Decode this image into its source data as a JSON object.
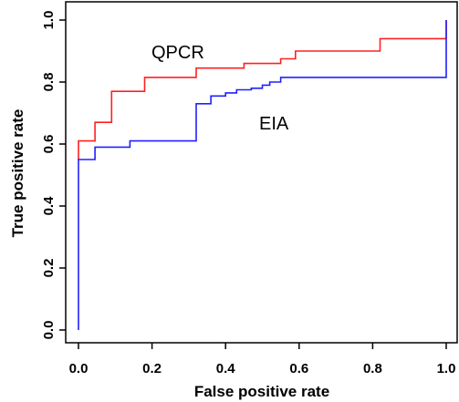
{
  "chart_data": {
    "type": "line",
    "xlabel": "False positive rate",
    "ylabel": "True positive rate",
    "xlim": [
      0,
      1
    ],
    "ylim": [
      0,
      1
    ],
    "x_ticks": [
      0.0,
      0.2,
      0.4,
      0.6,
      0.8,
      1.0
    ],
    "x_tick_labels": [
      "0.0",
      "0.2",
      "0.4",
      "0.6",
      "0.8",
      "1.0"
    ],
    "y_ticks": [
      0.0,
      0.2,
      0.4,
      0.6,
      0.8,
      1.0
    ],
    "y_tick_labels": [
      "0.0",
      "0.2",
      "0.4",
      "0.6",
      "0.8",
      "1.0"
    ],
    "grid": false,
    "series": [
      {
        "name": "QPCR",
        "color": "#ff2020",
        "points": [
          [
            0.0,
            0.55
          ],
          [
            0.0,
            0.61
          ],
          [
            0.045,
            0.61
          ],
          [
            0.045,
            0.67
          ],
          [
            0.09,
            0.67
          ],
          [
            0.09,
            0.77
          ],
          [
            0.18,
            0.77
          ],
          [
            0.18,
            0.815
          ],
          [
            0.32,
            0.815
          ],
          [
            0.32,
            0.845
          ],
          [
            0.45,
            0.845
          ],
          [
            0.45,
            0.86
          ],
          [
            0.55,
            0.86
          ],
          [
            0.55,
            0.875
          ],
          [
            0.59,
            0.875
          ],
          [
            0.59,
            0.9
          ],
          [
            0.82,
            0.9
          ],
          [
            0.82,
            0.94
          ],
          [
            1.0,
            0.94
          ],
          [
            1.0,
            1.0
          ]
        ]
      },
      {
        "name": "EIA",
        "color": "#2020ff",
        "points": [
          [
            0.0,
            0.0
          ],
          [
            0.0,
            0.55
          ],
          [
            0.045,
            0.55
          ],
          [
            0.045,
            0.59
          ],
          [
            0.14,
            0.59
          ],
          [
            0.14,
            0.61
          ],
          [
            0.32,
            0.61
          ],
          [
            0.32,
            0.73
          ],
          [
            0.36,
            0.73
          ],
          [
            0.36,
            0.755
          ],
          [
            0.4,
            0.755
          ],
          [
            0.4,
            0.765
          ],
          [
            0.43,
            0.765
          ],
          [
            0.43,
            0.775
          ],
          [
            0.47,
            0.775
          ],
          [
            0.47,
            0.78
          ],
          [
            0.5,
            0.78
          ],
          [
            0.5,
            0.79
          ],
          [
            0.52,
            0.79
          ],
          [
            0.52,
            0.8
          ],
          [
            0.55,
            0.8
          ],
          [
            0.55,
            0.815
          ],
          [
            1.0,
            0.815
          ],
          [
            1.0,
            1.0
          ]
        ]
      }
    ]
  }
}
